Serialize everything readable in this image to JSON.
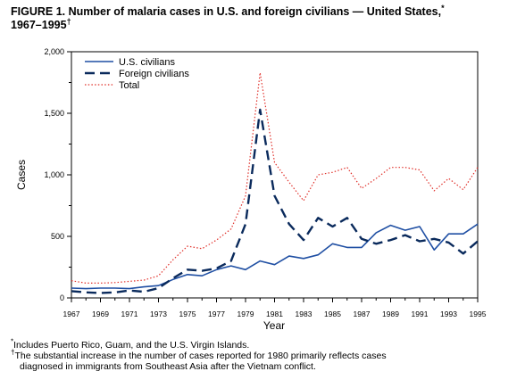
{
  "figure": {
    "title_main": "FIGURE 1. Number of malaria cases in U.S. and foreign civilians — United States,",
    "title_mark1": "*",
    "title_years": "1967–1995",
    "title_mark2": "†"
  },
  "footnotes": {
    "fn1_mark": "*",
    "fn1_text": "Includes Puerto Rico, Guam, and the U.S. Virgin Islands.",
    "fn2_mark": "†",
    "fn2_line1": "The substantial increase in the number of cases reported for 1980 primarily reflects cases",
    "fn2_line2": "diagnosed in immigrants from Southeast Asia after the Vietnam conflict."
  },
  "chart_data": {
    "type": "line",
    "title": "Number of malaria cases in U.S. and foreign civilians — United States, 1967–1995",
    "xlabel": "Year",
    "ylabel": "Cases",
    "xlim": [
      1967,
      1995
    ],
    "ylim": [
      0,
      2000
    ],
    "x_ticks": [
      1967,
      1969,
      1971,
      1973,
      1975,
      1977,
      1979,
      1981,
      1983,
      1985,
      1987,
      1989,
      1991,
      1993,
      1995
    ],
    "y_ticks": [
      0,
      500,
      1000,
      1500,
      2000
    ],
    "y_tick_labels": [
      "0",
      "500",
      "1,000",
      "1,500",
      "2,000"
    ],
    "legend_position": "top-left",
    "grid": false,
    "x": [
      1967,
      1968,
      1969,
      1970,
      1971,
      1972,
      1973,
      1974,
      1975,
      1976,
      1977,
      1978,
      1979,
      1980,
      1981,
      1982,
      1983,
      1984,
      1985,
      1986,
      1987,
      1988,
      1989,
      1990,
      1991,
      1992,
      1993,
      1994,
      1995
    ],
    "series": [
      {
        "name": "U.S. civilians",
        "style": "solid",
        "color": "#1f4fa3",
        "values": [
          80,
          75,
          80,
          80,
          75,
          90,
          100,
          150,
          190,
          180,
          230,
          260,
          230,
          300,
          270,
          340,
          320,
          350,
          440,
          410,
          410,
          530,
          590,
          550,
          580,
          390,
          520,
          520,
          600
        ]
      },
      {
        "name": "Foreign civilians",
        "style": "dashed",
        "color": "#0a2a5c",
        "values": [
          55,
          45,
          40,
          45,
          60,
          50,
          80,
          160,
          230,
          220,
          240,
          300,
          600,
          1530,
          830,
          600,
          470,
          650,
          580,
          650,
          480,
          440,
          470,
          510,
          460,
          480,
          450,
          360,
          460
        ]
      },
      {
        "name": "Total",
        "style": "dotted",
        "color": "#e0302a",
        "values": [
          140,
          120,
          120,
          125,
          135,
          145,
          180,
          310,
          420,
          400,
          470,
          560,
          830,
          1830,
          1100,
          940,
          790,
          1000,
          1020,
          1060,
          890,
          970,
          1060,
          1060,
          1040,
          870,
          970,
          880,
          1060
        ]
      }
    ]
  }
}
